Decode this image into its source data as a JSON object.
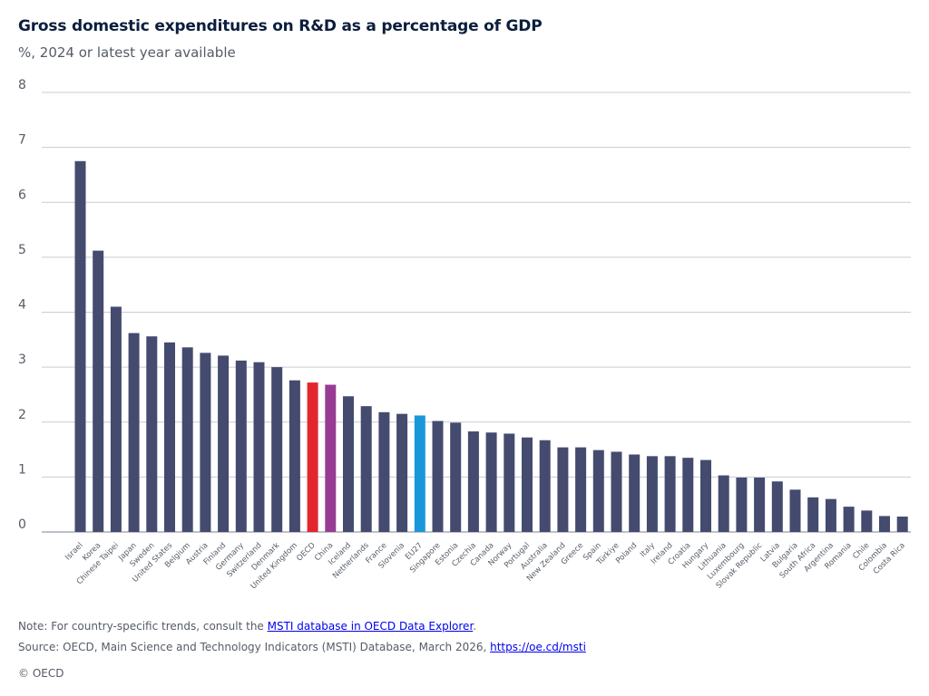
{
  "header": {
    "title": "Gross domestic expenditures on R&D as a percentage of GDP",
    "subtitle": "%, 2024 or latest year available"
  },
  "footer": {
    "note_prefix": "Note: For country-specific trends, consult the ",
    "note_link": "MSTI database in OECD Data Explorer",
    "note_suffix": ".",
    "source_prefix": "Source: OECD, Main Science and Technology Indicators (MSTI) Database, March 2026, ",
    "source_link": "https://oe.cd/msti",
    "copyright": "© OECD"
  },
  "colors": {
    "default_bar": "#444b6e",
    "oecd_bar": "#e3262d",
    "china_bar": "#983b93",
    "eu27_bar": "#1a97d9",
    "gridline": "#c9ccd6"
  },
  "chart_data": {
    "type": "bar",
    "title": "Gross domestic expenditures on R&D as a percentage of GDP",
    "subtitle": "%, 2024 or latest year available",
    "xlabel": "",
    "ylabel": "",
    "ylim": [
      0,
      8
    ],
    "yticks": [
      0,
      1,
      2,
      3,
      4,
      5,
      6,
      7,
      8
    ],
    "grid": true,
    "categories": [
      "Israel",
      "Korea",
      "Chinese Taipei",
      "Japan",
      "Sweden",
      "United States",
      "Belgium",
      "Austria",
      "Finland",
      "Germany",
      "Switzerland",
      "Denmark",
      "United Kingdom",
      "OECD",
      "China",
      "Iceland",
      "Netherlands",
      "France",
      "Slovenia",
      "EU27",
      "Singapore",
      "Estonia",
      "Czechia",
      "Canada",
      "Norway",
      "Portugal",
      "Australia",
      "New Zealand",
      "Greece",
      "Spain",
      "Türkiye",
      "Poland",
      "Italy",
      "Ireland",
      "Croatia",
      "Hungary",
      "Lithuania",
      "Luxembourg",
      "Slovak Republic",
      "Latvia",
      "Bulgaria",
      "South Africa",
      "Argentina",
      "Romania",
      "Chile",
      "Colombia",
      "Costa Rica"
    ],
    "values": [
      6.75,
      5.12,
      4.1,
      3.62,
      3.56,
      3.45,
      3.36,
      3.26,
      3.21,
      3.12,
      3.09,
      3.0,
      2.76,
      2.72,
      2.68,
      2.47,
      2.29,
      2.18,
      2.15,
      2.12,
      2.02,
      1.99,
      1.83,
      1.81,
      1.79,
      1.72,
      1.67,
      1.54,
      1.54,
      1.49,
      1.46,
      1.41,
      1.38,
      1.38,
      1.35,
      1.31,
      1.03,
      0.99,
      0.99,
      0.92,
      0.77,
      0.63,
      0.6,
      0.46,
      0.39,
      0.29,
      0.28
    ],
    "highlights": {
      "OECD": "#e3262d",
      "China": "#983b93",
      "EU27": "#1a97d9"
    }
  }
}
